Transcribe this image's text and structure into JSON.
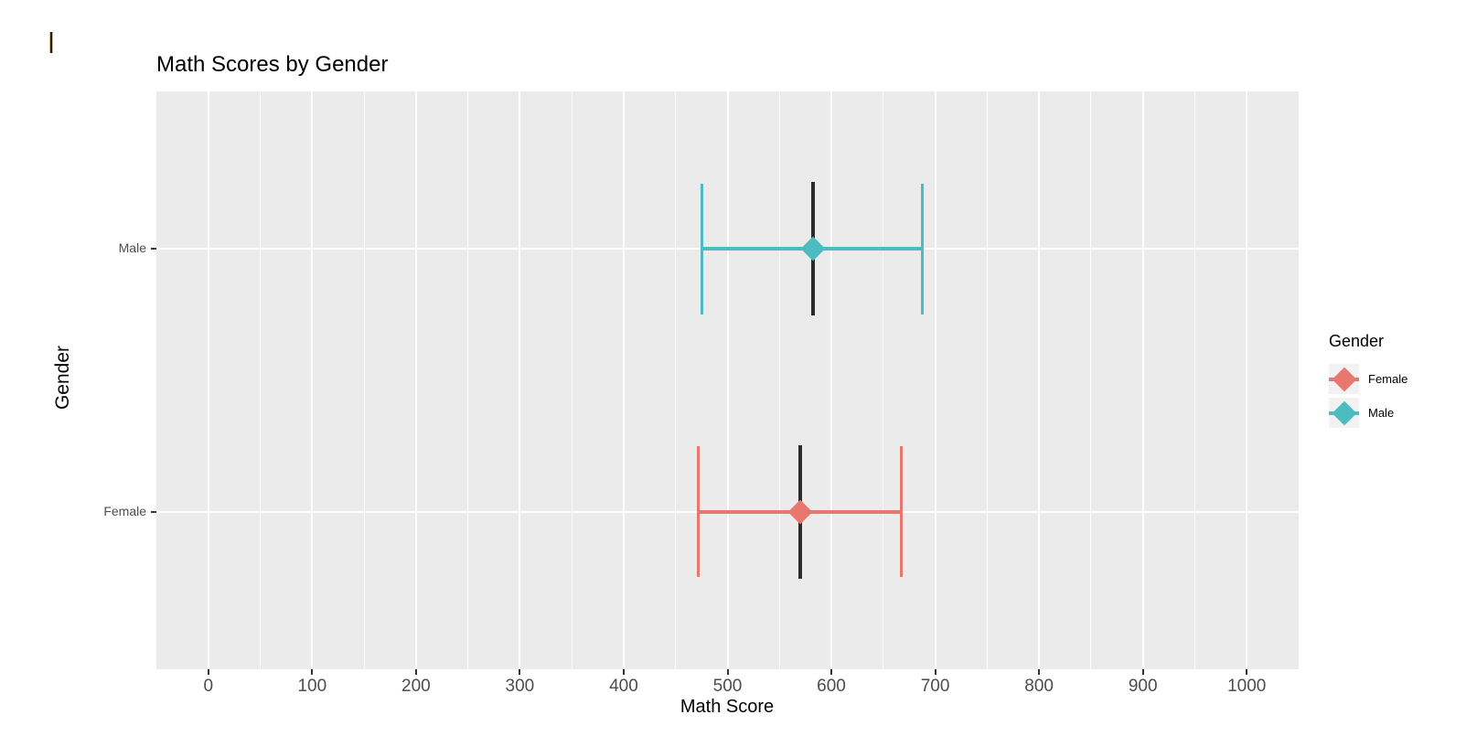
{
  "cursor": {
    "type": "text-cursor"
  },
  "chart_data": {
    "type": "errorbar",
    "title": "Math Scores by Gender",
    "xlabel": "Math Score",
    "ylabel": "Gender",
    "orientation": "horizontal",
    "panel_bg": "#EBEBEB",
    "grid_color": "#FFFFFF",
    "axis_text_color": "#4D4D4D",
    "center_line_color": "#2B2B2B",
    "legend_key_bg": "#F2F2F2",
    "x_axis": {
      "min": -50,
      "max": 1050,
      "major_ticks": [
        0,
        100,
        200,
        300,
        400,
        500,
        600,
        700,
        800,
        900,
        1000
      ],
      "minor_ticks": [
        50,
        150,
        250,
        350,
        450,
        550,
        650,
        750,
        850,
        950
      ]
    },
    "categories": [
      "Female",
      "Male"
    ],
    "series": [
      {
        "name": "Female",
        "mean": 570,
        "lower": 472,
        "upper": 667,
        "color": "#E8786E"
      },
      {
        "name": "Male",
        "mean": 582,
        "lower": 475,
        "upper": 688,
        "color": "#4DBCC1"
      }
    ],
    "legend": {
      "title": "Gender",
      "position": "right",
      "entries": [
        {
          "label": "Female",
          "color": "#E8786E"
        },
        {
          "label": "Male",
          "color": "#4DBCC1"
        }
      ]
    }
  }
}
